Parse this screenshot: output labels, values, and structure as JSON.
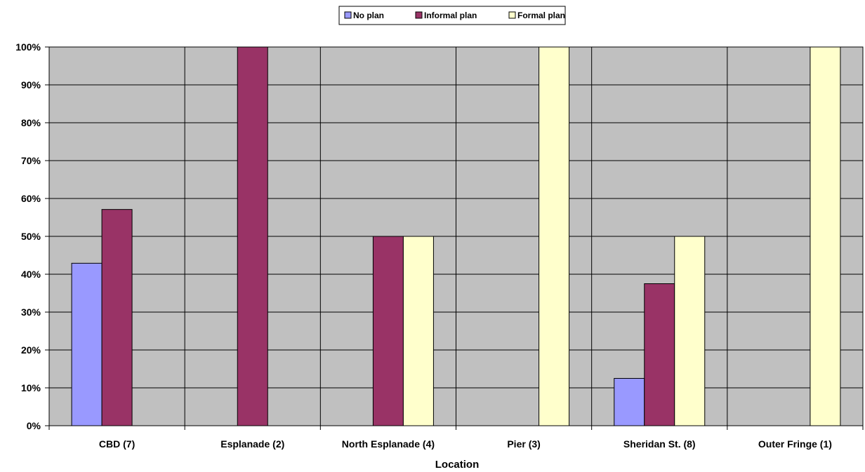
{
  "chart_data": {
    "type": "bar",
    "title": "",
    "xlabel": "Location",
    "ylabel": "",
    "ylim": [
      0,
      100
    ],
    "y_ticks": [
      "0%",
      "10%",
      "20%",
      "30%",
      "40%",
      "50%",
      "60%",
      "70%",
      "80%",
      "90%",
      "100%"
    ],
    "categories": [
      "CBD (7)",
      "Esplanade (2)",
      "North Esplanade (4)",
      "Pier (3)",
      "Sheridan St. (8)",
      "Outer Fringe (1)"
    ],
    "series": [
      {
        "name": "No plan",
        "color": "#9999ff",
        "values": [
          42.9,
          0,
          0,
          0,
          12.5,
          0
        ]
      },
      {
        "name": "Informal plan",
        "color": "#993366",
        "values": [
          57.1,
          100,
          50,
          0,
          37.5,
          0
        ]
      },
      {
        "name": "Formal plan",
        "color": "#ffffcc",
        "values": [
          0,
          0,
          50,
          100,
          50,
          100
        ]
      }
    ],
    "legend_position": "top-center",
    "grid": true,
    "plot_background": "#c0c0c0"
  }
}
